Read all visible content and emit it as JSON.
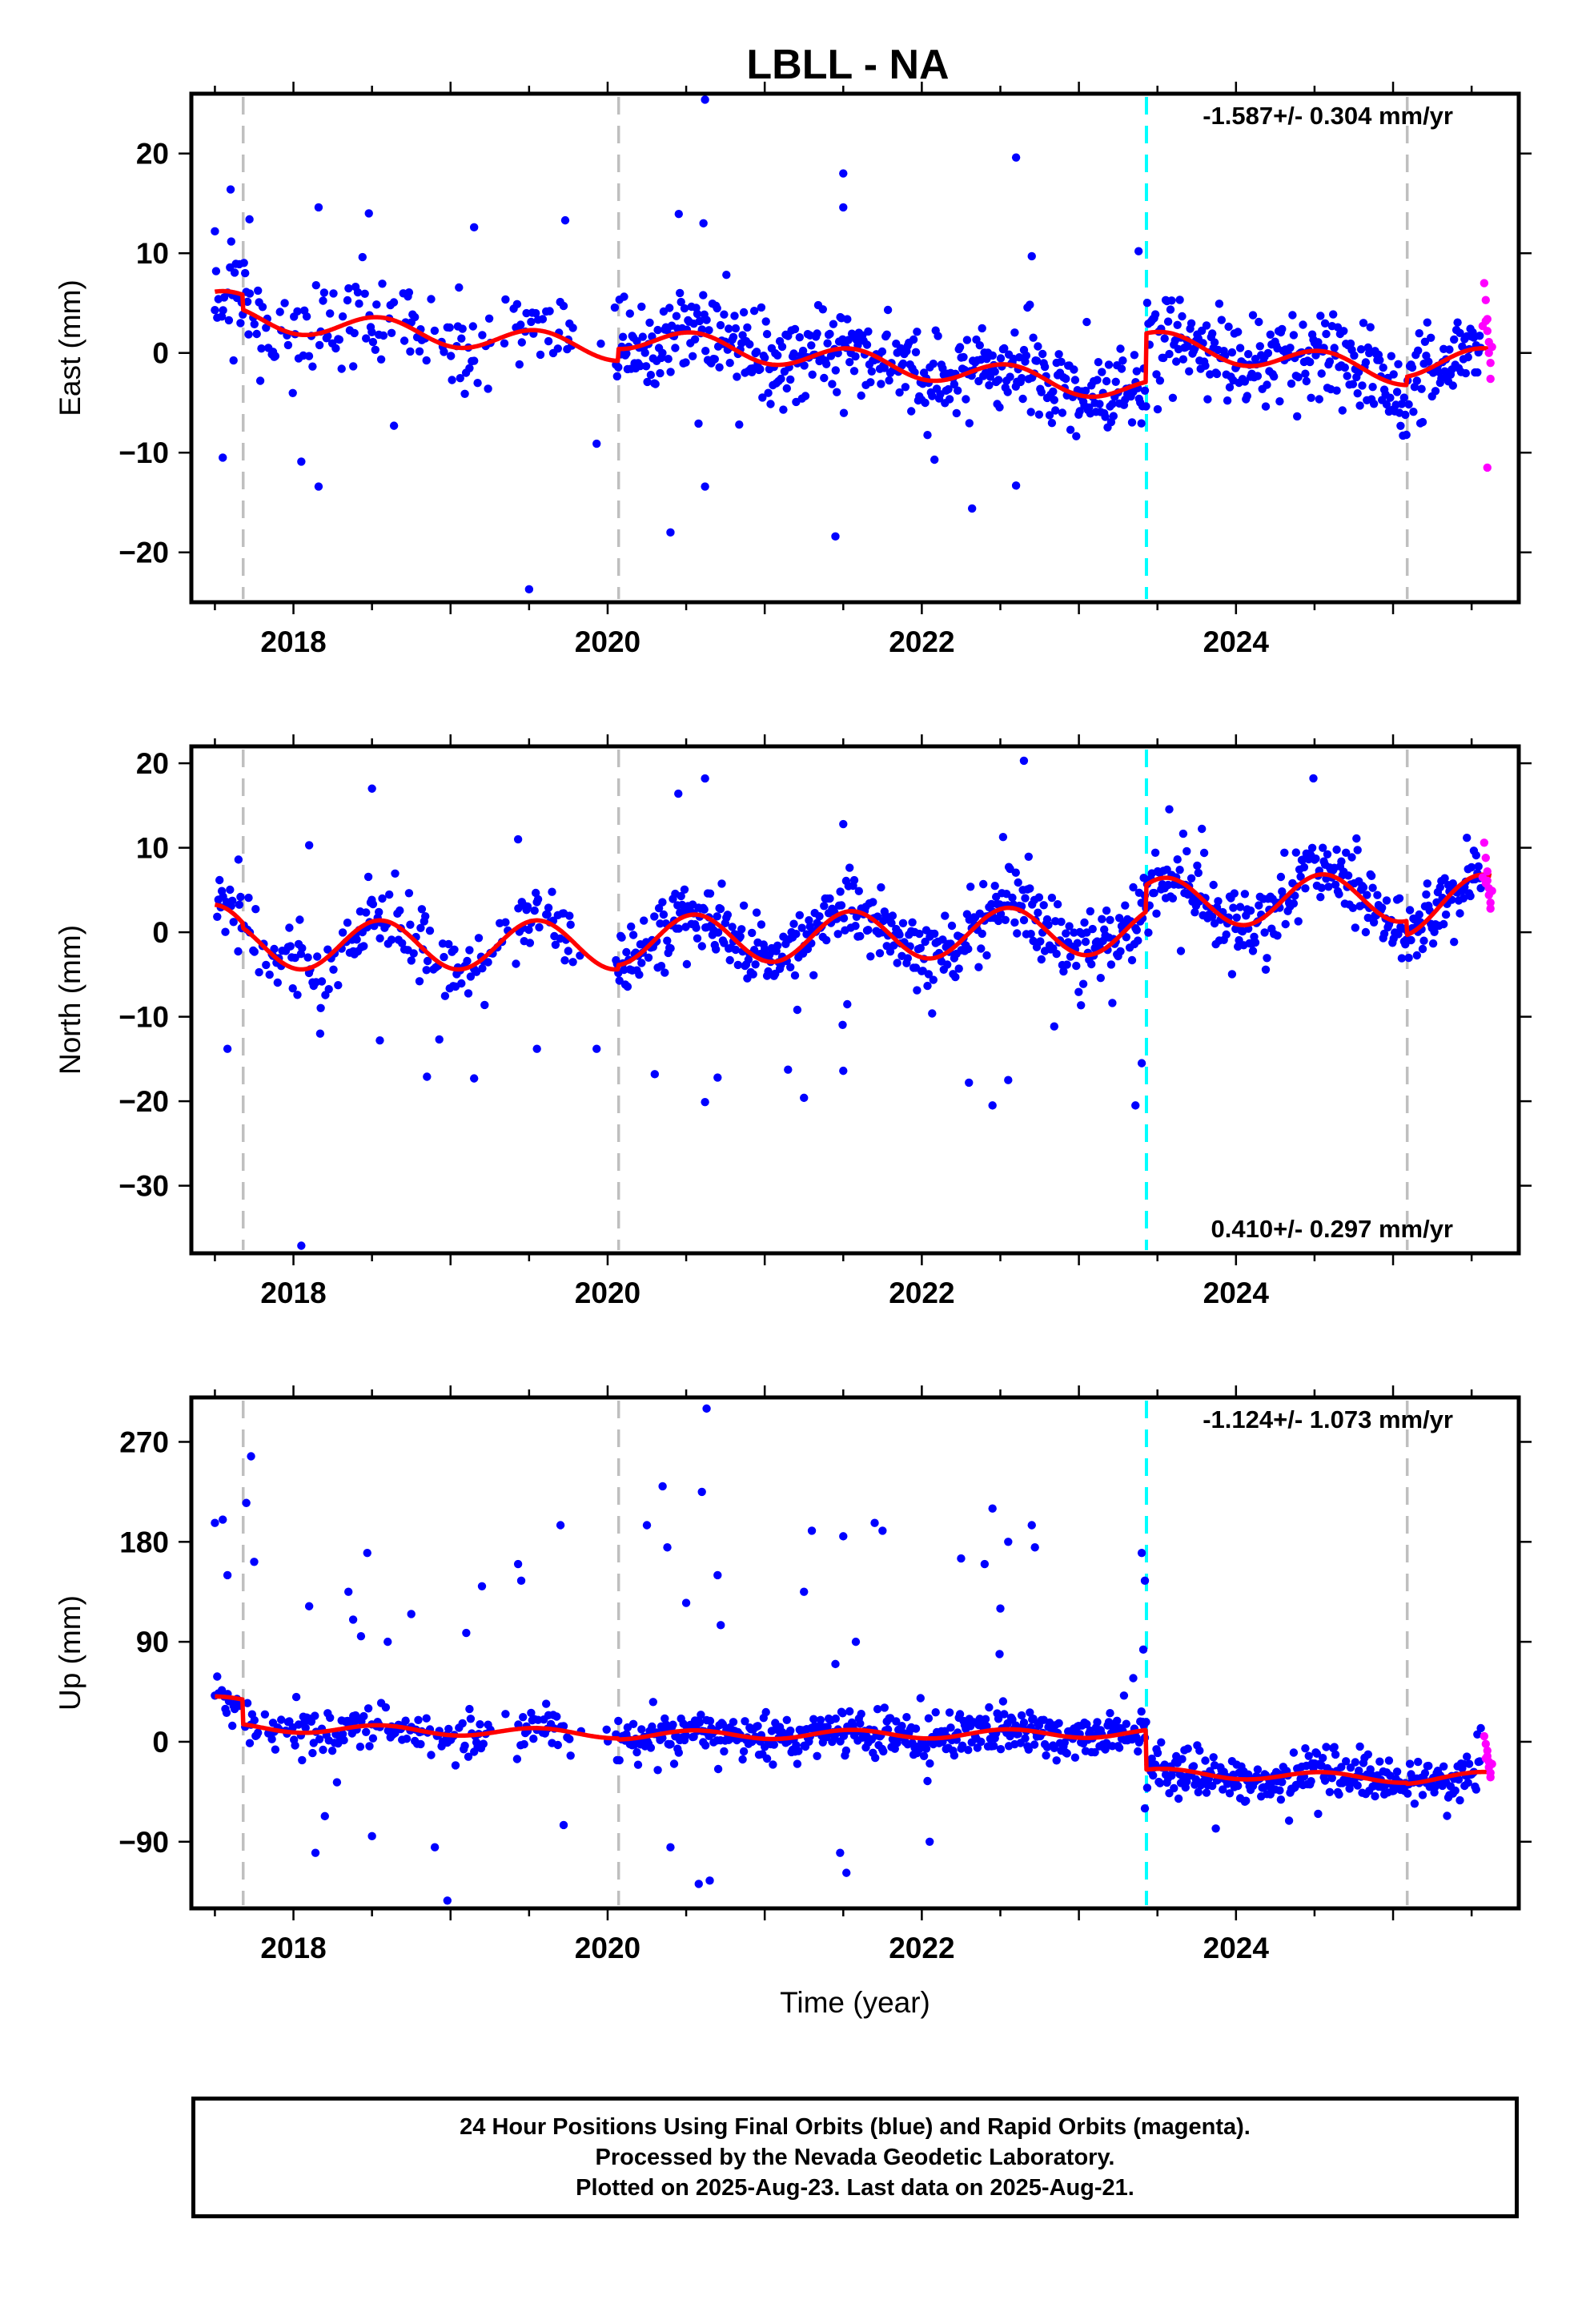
{
  "title": "LBLL - NA",
  "footer": {
    "line1": "24 Hour Positions Using Final Orbits (blue) and Rapid Orbits (magenta).",
    "line2": "Processed by the Nevada Geodetic Laboratory.",
    "line3": "Plotted on 2025-Aug-23. Last data on 2025-Aug-21."
  },
  "colors": {
    "final_orbits": "#0000ff",
    "rapid_orbits": "#ff00ff",
    "model_fit": "#ff0000",
    "event_line": "#00ffff",
    "antenna_change_line": "#bfbfbf"
  },
  "chart_data": [
    {
      "type": "scatter",
      "ylabel": "East (mm)",
      "xlabel": "",
      "xlim": [
        2017.35,
        2025.8
      ],
      "ylim": [
        -25,
        26
      ],
      "yticks": [
        20,
        10,
        0,
        -10,
        -20
      ],
      "xticks": [
        2018,
        2020,
        2022,
        2024
      ],
      "rate_label": "-1.587+/- 0.304 mm/yr",
      "rate_position": "top-right",
      "vertical_lines": [
        {
          "x": 2017.68,
          "kind": "equipment"
        },
        {
          "x": 2020.07,
          "kind": "equipment"
        },
        {
          "x": 2023.43,
          "kind": "event"
        },
        {
          "x": 2025.09,
          "kind": "equipment"
        }
      ],
      "fit_segments": [
        {
          "from": 2017.5,
          "to": 2017.68,
          "level": 5.0,
          "trend": 0.0
        },
        {
          "from": 2017.68,
          "to": 2020.07,
          "level": 3.5,
          "trend": -1.3,
          "ramp": 2.5
        },
        {
          "from": 2020.07,
          "to": 2023.43,
          "level": 1.6,
          "trend": -1.6
        },
        {
          "from": 2023.43,
          "to": 2025.09,
          "level": 1.1,
          "trend": -1.9
        },
        {
          "from": 2025.09,
          "to": 2025.63,
          "level": -1.2,
          "trend": 1.0
        }
      ],
      "seasonal_amplitude": 1.2,
      "scatter_sd": 2.1,
      "outliers": [
        {
          "x": 2017.5,
          "y": 12.2
        },
        {
          "x": 2017.55,
          "y": -10.5
        },
        {
          "x": 2017.6,
          "y": 16.4
        },
        {
          "x": 2017.72,
          "y": 13.4
        },
        {
          "x": 2018.05,
          "y": -10.9
        },
        {
          "x": 2018.16,
          "y": -13.4
        },
        {
          "x": 2018.16,
          "y": 14.6
        },
        {
          "x": 2018.48,
          "y": 14.0
        },
        {
          "x": 2018.64,
          "y": -7.3
        },
        {
          "x": 2019.15,
          "y": 12.6
        },
        {
          "x": 2019.5,
          "y": -23.7
        },
        {
          "x": 2019.73,
          "y": 13.3
        },
        {
          "x": 2019.93,
          "y": -9.1
        },
        {
          "x": 2020.4,
          "y": -18.0
        },
        {
          "x": 2020.62,
          "y": 25.4
        },
        {
          "x": 2020.62,
          "y": -13.4
        },
        {
          "x": 2020.61,
          "y": 13.0
        },
        {
          "x": 2021.45,
          "y": -18.4
        },
        {
          "x": 2021.5,
          "y": 18.0
        },
        {
          "x": 2021.5,
          "y": 14.6
        },
        {
          "x": 2022.32,
          "y": -15.6
        },
        {
          "x": 2022.6,
          "y": 19.6
        },
        {
          "x": 2022.6,
          "y": -13.3
        },
        {
          "x": 2022.7,
          "y": 9.7
        },
        {
          "x": 2023.38,
          "y": 10.2
        }
      ],
      "rapid_points": [
        {
          "x": 2025.58,
          "y": 7.0
        },
        {
          "x": 2025.59,
          "y": 5.3
        },
        {
          "x": 2025.6,
          "y": 3.4
        },
        {
          "x": 2025.6,
          "y": 2.2
        },
        {
          "x": 2025.61,
          "y": 1.1
        },
        {
          "x": 2025.61,
          "y": 0.0
        },
        {
          "x": 2025.62,
          "y": -1.0
        },
        {
          "x": 2025.62,
          "y": -2.6
        },
        {
          "x": 2025.6,
          "y": -11.5
        },
        {
          "x": 2025.59,
          "y": 3.2
        },
        {
          "x": 2025.63,
          "y": 0.6
        },
        {
          "x": 2025.57,
          "y": 2.7
        }
      ],
      "seed": 11
    },
    {
      "type": "scatter",
      "ylabel": "North (mm)",
      "xlabel": "",
      "xlim": [
        2017.35,
        2025.8
      ],
      "ylim": [
        -38,
        22
      ],
      "yticks": [
        20,
        10,
        0,
        -10,
        -20,
        -30
      ],
      "xticks": [
        2018,
        2020,
        2022,
        2024
      ],
      "rate_label": "0.410+/- 0.297 mm/yr",
      "rate_position": "bottom-right",
      "vertical_lines": [
        {
          "x": 2017.68,
          "kind": "equipment"
        },
        {
          "x": 2020.07,
          "kind": "equipment"
        },
        {
          "x": 2023.43,
          "kind": "event"
        },
        {
          "x": 2025.09,
          "kind": "equipment"
        }
      ],
      "fit_segments": [
        {
          "from": 2017.5,
          "to": 2017.68,
          "level": 0.5,
          "trend": -8.0
        },
        {
          "from": 2017.68,
          "to": 2020.07,
          "level": -1.5,
          "trend": 0.0
        },
        {
          "from": 2020.07,
          "to": 2023.43,
          "level": -1.0,
          "trend": 0.4
        },
        {
          "from": 2023.43,
          "to": 2025.09,
          "level": 3.5,
          "trend": 0.4
        },
        {
          "from": 2025.09,
          "to": 2025.63,
          "level": 2.5,
          "trend": 3.0
        }
      ],
      "seasonal_amplitude": 2.9,
      "scatter_sd": 2.0,
      "outliers": [
        {
          "x": 2017.58,
          "y": -13.8
        },
        {
          "x": 2017.65,
          "y": 8.6
        },
        {
          "x": 2018.05,
          "y": -37.1
        },
        {
          "x": 2018.1,
          "y": 10.3
        },
        {
          "x": 2018.17,
          "y": -12.0
        },
        {
          "x": 2018.5,
          "y": 17.0
        },
        {
          "x": 2018.55,
          "y": -12.8
        },
        {
          "x": 2018.85,
          "y": -17.1
        },
        {
          "x": 2019.15,
          "y": -17.3
        },
        {
          "x": 2019.43,
          "y": 11.0
        },
        {
          "x": 2019.55,
          "y": -13.8
        },
        {
          "x": 2019.93,
          "y": -13.8
        },
        {
          "x": 2020.3,
          "y": -16.8
        },
        {
          "x": 2020.45,
          "y": 16.4
        },
        {
          "x": 2020.62,
          "y": 18.2
        },
        {
          "x": 2020.62,
          "y": -20.1
        },
        {
          "x": 2020.7,
          "y": -17.2
        },
        {
          "x": 2021.25,
          "y": -19.6
        },
        {
          "x": 2021.5,
          "y": -16.4
        },
        {
          "x": 2021.5,
          "y": 12.8
        },
        {
          "x": 2022.3,
          "y": -17.8
        },
        {
          "x": 2022.45,
          "y": -20.5
        },
        {
          "x": 2022.65,
          "y": 20.3
        },
        {
          "x": 2022.55,
          "y": -17.5
        },
        {
          "x": 2023.36,
          "y": -20.5
        },
        {
          "x": 2023.4,
          "y": -15.5
        }
      ],
      "rapid_points": [
        {
          "x": 2025.58,
          "y": 10.6
        },
        {
          "x": 2025.59,
          "y": 8.8
        },
        {
          "x": 2025.6,
          "y": 7.2
        },
        {
          "x": 2025.6,
          "y": 6.1
        },
        {
          "x": 2025.61,
          "y": 5.2
        },
        {
          "x": 2025.61,
          "y": 4.4
        },
        {
          "x": 2025.62,
          "y": 3.5
        },
        {
          "x": 2025.62,
          "y": 2.8
        },
        {
          "x": 2025.59,
          "y": 5.8
        },
        {
          "x": 2025.63,
          "y": 4.9
        },
        {
          "x": 2025.57,
          "y": 6.5
        }
      ],
      "seed": 23
    },
    {
      "type": "scatter",
      "ylabel": "Up (mm)",
      "xlabel": "Time (year)",
      "xlim": [
        2017.35,
        2025.8
      ],
      "ylim": [
        -150,
        310
      ],
      "yticks": [
        270,
        180,
        90,
        0,
        -90
      ],
      "xticks": [
        2018,
        2020,
        2022,
        2024
      ],
      "rate_label": "-1.124+/- 1.073 mm/yr",
      "rate_position": "top-right",
      "vertical_lines": [
        {
          "x": 2017.68,
          "kind": "equipment"
        },
        {
          "x": 2020.07,
          "kind": "equipment"
        },
        {
          "x": 2023.43,
          "kind": "event"
        },
        {
          "x": 2025.09,
          "kind": "equipment"
        }
      ],
      "fit_segments": [
        {
          "from": 2017.5,
          "to": 2017.68,
          "level": 37.0,
          "trend": -10.0
        },
        {
          "from": 2017.68,
          "to": 2020.07,
          "level": 13.0,
          "trend": -2.5
        },
        {
          "from": 2020.07,
          "to": 2023.43,
          "level": 6.0,
          "trend": 0.5
        },
        {
          "from": 2023.43,
          "to": 2025.09,
          "level": -28.0,
          "trend": -3.0
        },
        {
          "from": 2025.09,
          "to": 2025.63,
          "level": -34.0,
          "trend": 6.0
        }
      ],
      "seasonal_amplitude": 4.0,
      "scatter_sd": 10.0,
      "outliers": [
        {
          "x": 2017.5,
          "y": 197
        },
        {
          "x": 2017.55,
          "y": 200
        },
        {
          "x": 2017.58,
          "y": 150
        },
        {
          "x": 2017.7,
          "y": 215
        },
        {
          "x": 2017.73,
          "y": 257
        },
        {
          "x": 2017.75,
          "y": 162
        },
        {
          "x": 2018.1,
          "y": 122
        },
        {
          "x": 2018.14,
          "y": -100
        },
        {
          "x": 2018.2,
          "y": -67
        },
        {
          "x": 2018.35,
          "y": 135
        },
        {
          "x": 2018.38,
          "y": 110
        },
        {
          "x": 2018.43,
          "y": 95
        },
        {
          "x": 2018.47,
          "y": 170
        },
        {
          "x": 2018.5,
          "y": -85
        },
        {
          "x": 2018.6,
          "y": 90
        },
        {
          "x": 2018.75,
          "y": 115
        },
        {
          "x": 2018.9,
          "y": -95
        },
        {
          "x": 2018.98,
          "y": -143
        },
        {
          "x": 2019.1,
          "y": 98
        },
        {
          "x": 2019.2,
          "y": 140
        },
        {
          "x": 2019.43,
          "y": 160
        },
        {
          "x": 2019.45,
          "y": 145
        },
        {
          "x": 2019.7,
          "y": 195
        },
        {
          "x": 2019.72,
          "y": -75
        },
        {
          "x": 2020.25,
          "y": 195
        },
        {
          "x": 2020.35,
          "y": 230
        },
        {
          "x": 2020.38,
          "y": 175
        },
        {
          "x": 2020.4,
          "y": -95
        },
        {
          "x": 2020.5,
          "y": 125
        },
        {
          "x": 2020.6,
          "y": 225
        },
        {
          "x": 2020.63,
          "y": 300
        },
        {
          "x": 2020.65,
          "y": -125
        },
        {
          "x": 2020.7,
          "y": 150
        },
        {
          "x": 2020.72,
          "y": 105
        },
        {
          "x": 2021.25,
          "y": 135
        },
        {
          "x": 2021.3,
          "y": 190
        },
        {
          "x": 2021.45,
          "y": 70
        },
        {
          "x": 2021.48,
          "y": -100
        },
        {
          "x": 2021.5,
          "y": 185
        },
        {
          "x": 2021.52,
          "y": -118
        },
        {
          "x": 2021.58,
          "y": 90
        },
        {
          "x": 2021.7,
          "y": 197
        },
        {
          "x": 2021.75,
          "y": 190
        },
        {
          "x": 2022.05,
          "y": -90
        },
        {
          "x": 2022.25,
          "y": 165
        },
        {
          "x": 2022.4,
          "y": 160
        },
        {
          "x": 2022.45,
          "y": 210
        },
        {
          "x": 2022.5,
          "y": 120
        },
        {
          "x": 2022.55,
          "y": 180
        },
        {
          "x": 2022.7,
          "y": 195
        },
        {
          "x": 2022.72,
          "y": 175
        },
        {
          "x": 2020.58,
          "y": -128
        },
        {
          "x": 2023.4,
          "y": 170
        },
        {
          "x": 2023.42,
          "y": 145
        },
        {
          "x": 2023.41,
          "y": 83
        },
        {
          "x": 2023.42,
          "y": -60
        }
      ],
      "rapid_points": [
        {
          "x": 2025.58,
          "y": 5
        },
        {
          "x": 2025.59,
          "y": -2
        },
        {
          "x": 2025.6,
          "y": -8
        },
        {
          "x": 2025.6,
          "y": -13
        },
        {
          "x": 2025.61,
          "y": -18
        },
        {
          "x": 2025.61,
          "y": -23
        },
        {
          "x": 2025.62,
          "y": -28
        },
        {
          "x": 2025.62,
          "y": -32
        },
        {
          "x": 2025.59,
          "y": -15
        },
        {
          "x": 2025.63,
          "y": -20
        }
      ],
      "seed": 37
    }
  ]
}
